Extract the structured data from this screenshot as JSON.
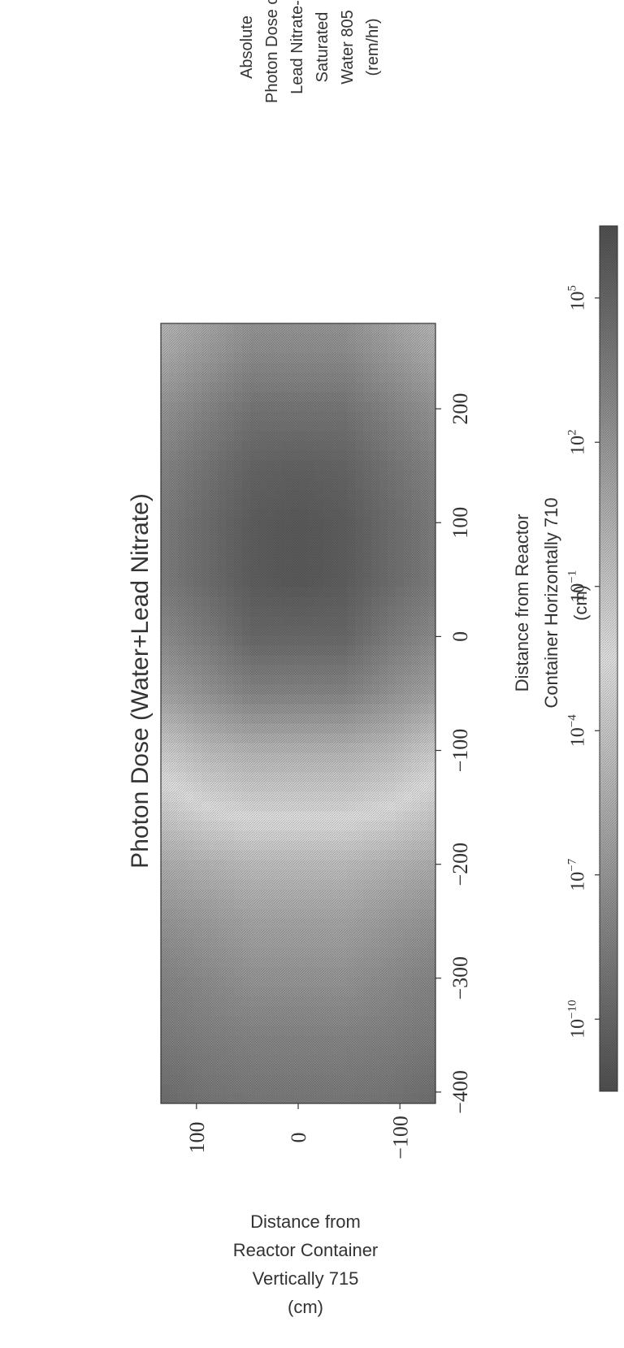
{
  "chart_data": {
    "type": "heatmap",
    "title": "Photon Dose (Water+Lead Nitrate)",
    "xlabel": [
      "Distance from Reactor",
      "Container Horizontally 710",
      "(cm)"
    ],
    "ylabel": [
      "Distance from",
      "Reactor Container",
      "Vertically 715",
      "(cm)"
    ],
    "x_ticks": [
      -400,
      -300,
      -200,
      -100,
      0,
      100,
      200
    ],
    "x_tick_labels": [
      "−400",
      "−300",
      "−200",
      "−100",
      "0",
      "100",
      "200"
    ],
    "y_ticks": [
      100,
      0,
      -100
    ],
    "y_tick_labels": [
      "100",
      "0",
      "−100"
    ],
    "xlim": [
      -410,
      275
    ],
    "ylim": [
      -135,
      135
    ],
    "colorbar": {
      "label": [
        "Absolute",
        "Photon Dose of",
        "Lead Nitrate-",
        "Saturated",
        "Water 805",
        "(rem/hr)"
      ],
      "ticks": [
        5,
        2,
        -1,
        -4,
        -7,
        -10
      ],
      "tick_labels": [
        {
          "base": "10",
          "exp": "5"
        },
        {
          "base": "10",
          "exp": "2"
        },
        {
          "base": "10",
          "exp": "−1"
        },
        {
          "base": "10",
          "exp": "−4"
        },
        {
          "base": "10",
          "exp": "−7"
        },
        {
          "base": "10",
          "exp": "−10"
        }
      ],
      "range": [
        -11.5,
        6.5
      ],
      "scale": "log"
    },
    "field": {
      "x": [
        -410,
        -350,
        -300,
        -250,
        -200,
        -150,
        -100,
        -50,
        0,
        50,
        100,
        150,
        200,
        250,
        275
      ],
      "y": [
        -135,
        -90,
        -45,
        0,
        45,
        90,
        135
      ],
      "log10_dose": [
        [
          -9.5,
          -8.5,
          -8,
          -7,
          -5.5,
          -3.5,
          -1.5,
          1,
          2.5,
          3.5,
          3.5,
          3,
          2,
          0.5,
          0
        ],
        [
          -9,
          -8.2,
          -7.5,
          -6.5,
          -5,
          -2.5,
          -0.5,
          2,
          3.5,
          4.5,
          4.5,
          4,
          3,
          1.5,
          1
        ],
        [
          -8.8,
          -8,
          -7,
          -6,
          -4.5,
          -2,
          0,
          3,
          4.8,
          5.5,
          5.5,
          5,
          4,
          2.5,
          2
        ],
        [
          -8.8,
          -8,
          -7,
          -6,
          -4.5,
          -2,
          0,
          3,
          4.8,
          5.8,
          5.8,
          5.2,
          4,
          2.5,
          2
        ],
        [
          -8.8,
          -8,
          -7,
          -6,
          -4.5,
          -2,
          0,
          3,
          4.8,
          5.5,
          5.5,
          5,
          4,
          2.5,
          2
        ],
        [
          -9,
          -8.2,
          -7.5,
          -6.5,
          -5,
          -2.5,
          -0.5,
          2,
          3.5,
          4.5,
          4.5,
          4,
          3,
          1.5,
          1
        ],
        [
          -9.5,
          -8.5,
          -8,
          -7,
          -5.5,
          -3.5,
          -1.5,
          1,
          2.5,
          3.5,
          3.5,
          3,
          2,
          0.5,
          0
        ]
      ]
    }
  }
}
